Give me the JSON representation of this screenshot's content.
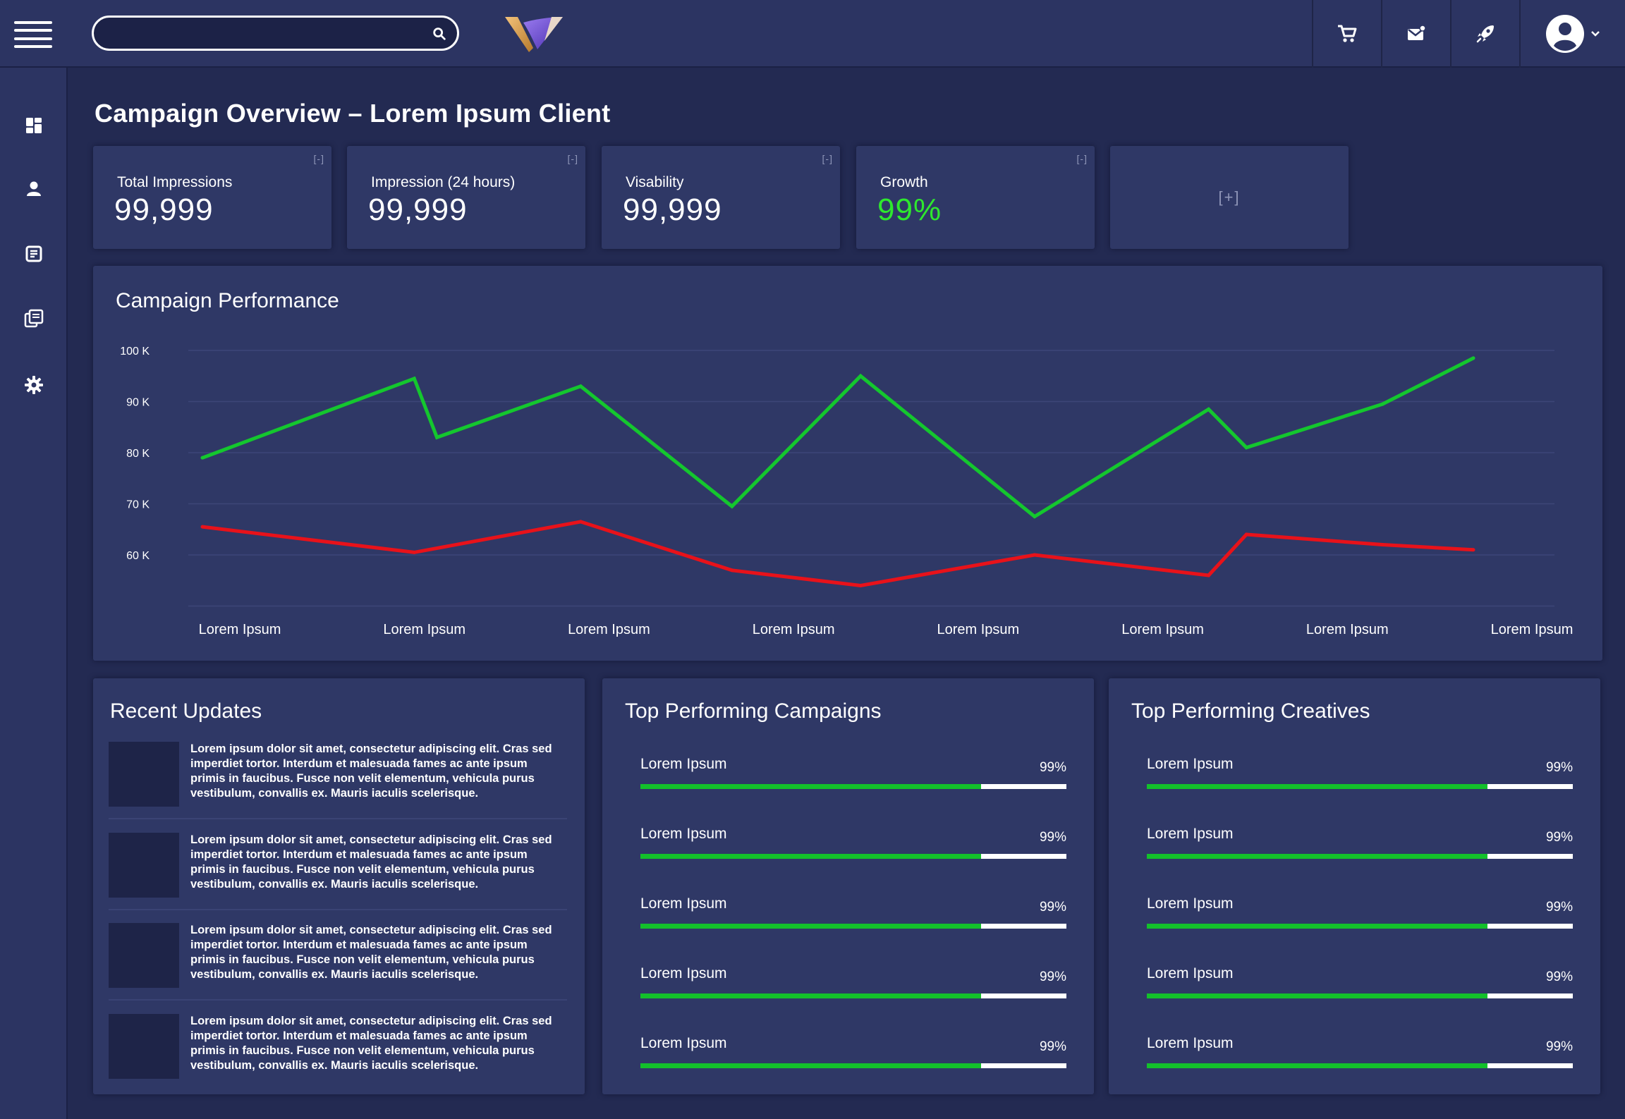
{
  "search": {
    "placeholder": "",
    "value": ""
  },
  "page_title": "Campaign Overview – Lorem Ipsum Client",
  "kpis": [
    {
      "label": "Total Impressions",
      "value": "99,999",
      "collapse": "[-]"
    },
    {
      "label": "Impression (24 hours)",
      "value": "99,999",
      "collapse": "[-]"
    },
    {
      "label": "Visability",
      "value": "99,999",
      "collapse": "[-]"
    },
    {
      "label": "Growth",
      "value": "99%",
      "collapse": "[-]"
    }
  ],
  "add_card_label": "[+]",
  "performance": {
    "title": "Campaign Performance"
  },
  "chart_data": {
    "type": "line",
    "title": "Campaign Performance",
    "xlabel": "",
    "ylabel": "",
    "ylim": [
      50000,
      100000
    ],
    "y_ticks": [
      {
        "value": 100000,
        "label": "100 K"
      },
      {
        "value": 90000,
        "label": "90 K"
      },
      {
        "value": 80000,
        "label": "80 K"
      },
      {
        "value": 70000,
        "label": "70 K"
      },
      {
        "value": 60000,
        "label": "60 K"
      }
    ],
    "x_tick_labels": [
      "Lorem Ipsum",
      "Lorem Ipsum",
      "Lorem Ipsum",
      "Lorem Ipsum",
      "Lorem Ipsum",
      "Lorem Ipsum",
      "Lorem Ipsum",
      "Lorem Ipsum"
    ],
    "grid": true,
    "series": [
      {
        "color": "#14c72e",
        "points": [
          [
            0.0,
            79000
          ],
          [
            0.28,
            94500
          ],
          [
            0.31,
            83000
          ],
          [
            0.5,
            93000
          ],
          [
            0.7,
            69500
          ],
          [
            0.87,
            95000
          ],
          [
            1.1,
            67500
          ],
          [
            1.33,
            88500
          ],
          [
            1.38,
            81000
          ],
          [
            1.56,
            89500
          ],
          [
            1.68,
            98500
          ]
        ]
      },
      {
        "color": "#e8121a",
        "points": [
          [
            0.0,
            65500
          ],
          [
            0.28,
            60500
          ],
          [
            0.5,
            66500
          ],
          [
            0.7,
            57000
          ],
          [
            0.87,
            54000
          ],
          [
            1.1,
            60000
          ],
          [
            1.33,
            56000
          ],
          [
            1.38,
            64000
          ],
          [
            1.56,
            62000
          ],
          [
            1.68,
            61000
          ]
        ]
      }
    ]
  },
  "recent_updates": {
    "title": "Recent Updates",
    "items": [
      {
        "text": "Lorem ipsum dolor sit amet, consectetur adipiscing elit. Cras sed imperdiet tortor. Interdum et malesuada fames ac ante ipsum primis in faucibus. Fusce non velit elementum, vehicula purus vestibulum, convallis ex. Mauris iaculis scelerisque."
      },
      {
        "text": "Lorem ipsum dolor sit amet, consectetur adipiscing elit. Cras sed imperdiet tortor. Interdum et malesuada fames ac ante ipsum primis in faucibus. Fusce non velit elementum, vehicula purus vestibulum, convallis ex. Mauris iaculis scelerisque."
      },
      {
        "text": "Lorem ipsum dolor sit amet, consectetur adipiscing elit. Cras sed imperdiet tortor. Interdum et malesuada fames ac ante ipsum primis in faucibus. Fusce non velit elementum, vehicula purus vestibulum, convallis ex. Mauris iaculis scelerisque."
      },
      {
        "text": "Lorem ipsum dolor sit amet, consectetur adipiscing elit. Cras sed imperdiet tortor. Interdum et malesuada fames ac ante ipsum primis in faucibus. Fusce non velit elementum, vehicula purus vestibulum, convallis ex. Mauris iaculis scelerisque."
      }
    ]
  },
  "top_campaigns": {
    "title": "Top Performing Campaigns",
    "items": [
      {
        "name": "Lorem Ipsum",
        "pct": "99%",
        "fill": 0.8
      },
      {
        "name": "Lorem Ipsum",
        "pct": "99%",
        "fill": 0.8
      },
      {
        "name": "Lorem Ipsum",
        "pct": "99%",
        "fill": 0.8
      },
      {
        "name": "Lorem Ipsum",
        "pct": "99%",
        "fill": 0.8
      },
      {
        "name": "Lorem Ipsum",
        "pct": "99%",
        "fill": 0.8
      }
    ]
  },
  "top_creatives": {
    "title": "Top Performing Creatives",
    "items": [
      {
        "name": "Lorem Ipsum",
        "pct": "99%",
        "fill": 0.8
      },
      {
        "name": "Lorem Ipsum",
        "pct": "99%",
        "fill": 0.8
      },
      {
        "name": "Lorem Ipsum",
        "pct": "99%",
        "fill": 0.8
      },
      {
        "name": "Lorem Ipsum",
        "pct": "99%",
        "fill": 0.8
      },
      {
        "name": "Lorem Ipsum",
        "pct": "99%",
        "fill": 0.8
      }
    ]
  },
  "icons": {
    "menu": "hamburger-menu-icon",
    "search": "search-icon",
    "logo": "v-logo-icon",
    "top": [
      "cart-icon",
      "mail-icon",
      "rocket-icon"
    ],
    "account": "user-circle-icon",
    "sidebar": [
      "dashboard-icon",
      "user-icon",
      "document-icon",
      "copy-icon",
      "gear-icon"
    ]
  },
  "colors": {
    "background": "#232a52",
    "panel": "#2f3866",
    "accent_green": "#14c72e",
    "accent_red": "#e8121a",
    "growth_green": "#2ee82e"
  }
}
